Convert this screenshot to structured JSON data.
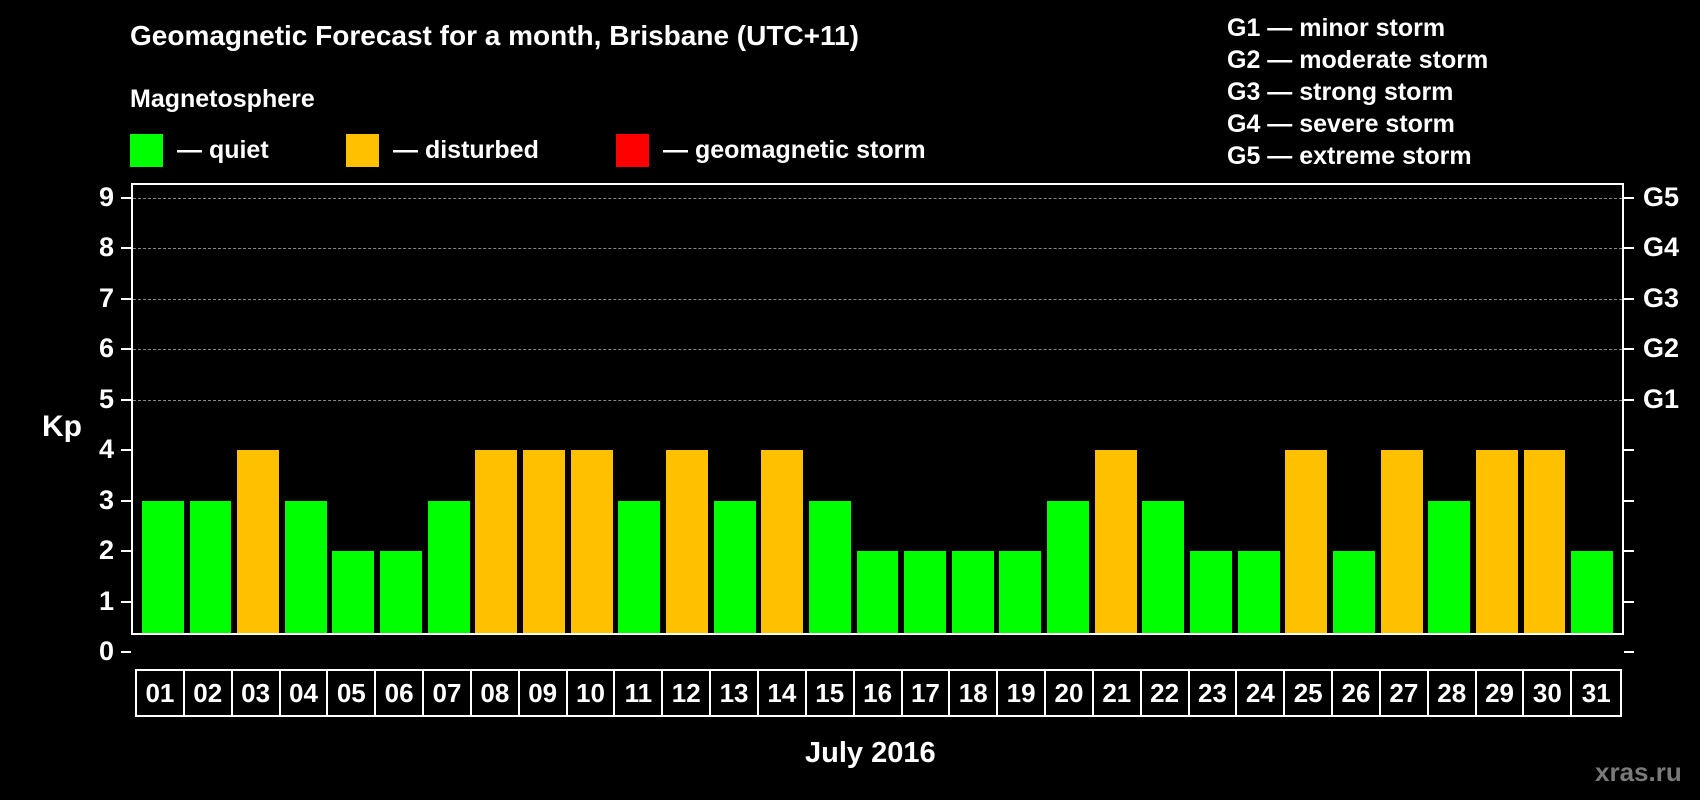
{
  "header": {
    "title": "Geomagnetic Forecast for a month, Brisbane (UTC+11)",
    "subtitle": "Magnetosphere"
  },
  "legend": [
    {
      "label": "— quiet",
      "color": "#00ff00"
    },
    {
      "label": "— disturbed",
      "color": "#ffc000"
    },
    {
      "label": "— geomagnetic storm",
      "color": "#ff0000"
    }
  ],
  "g_scale": [
    "G1 — minor storm",
    "G2 — moderate storm",
    "G3 — strong storm",
    "G4 — severe storm",
    "G5 — extreme storm"
  ],
  "axes": {
    "ylabel": "Kp",
    "xlabel": "July 2016",
    "yticks": [
      "0",
      "1",
      "2",
      "3",
      "4",
      "5",
      "6",
      "7",
      "8",
      "9"
    ],
    "right_labels": [
      {
        "kp": 5,
        "label": "G1"
      },
      {
        "kp": 6,
        "label": "G2"
      },
      {
        "kp": 7,
        "label": "G3"
      },
      {
        "kp": 8,
        "label": "G4"
      },
      {
        "kp": 9,
        "label": "G5"
      }
    ]
  },
  "watermark": "xras.ru",
  "colors": {
    "quiet": "#00ff00",
    "disturbed": "#ffc000",
    "storm": "#ff0000",
    "background": "#000000",
    "grid": "#888888"
  },
  "chart_data": {
    "type": "bar",
    "title": "Geomagnetic Forecast for a month, Brisbane (UTC+11)",
    "xlabel": "July 2016",
    "ylabel": "Kp",
    "ylim": [
      0,
      9
    ],
    "grid": true,
    "legend_position": "top",
    "categories": [
      "01",
      "02",
      "03",
      "04",
      "05",
      "06",
      "07",
      "08",
      "09",
      "10",
      "11",
      "12",
      "13",
      "14",
      "15",
      "16",
      "17",
      "18",
      "19",
      "20",
      "21",
      "22",
      "23",
      "24",
      "25",
      "26",
      "27",
      "28",
      "29",
      "30",
      "31"
    ],
    "values": [
      3,
      3,
      4,
      3,
      2,
      2,
      3,
      4,
      4,
      4,
      3,
      4,
      3,
      4,
      3,
      2,
      2,
      2,
      2,
      3,
      4,
      3,
      2,
      2,
      4,
      2,
      4,
      3,
      4,
      4,
      2
    ],
    "status": [
      "quiet",
      "quiet",
      "disturbed",
      "quiet",
      "quiet",
      "quiet",
      "quiet",
      "disturbed",
      "disturbed",
      "disturbed",
      "quiet",
      "disturbed",
      "quiet",
      "disturbed",
      "quiet",
      "quiet",
      "quiet",
      "quiet",
      "quiet",
      "quiet",
      "disturbed",
      "quiet",
      "quiet",
      "quiet",
      "disturbed",
      "quiet",
      "disturbed",
      "quiet",
      "disturbed",
      "disturbed",
      "quiet"
    ],
    "color_rule": "Kp<=3 quiet (green), Kp=4 disturbed (orange), Kp>=5 geomagnetic storm (red)",
    "right_axis_labels": {
      "5": "G1",
      "6": "G2",
      "7": "G3",
      "8": "G4",
      "9": "G5"
    }
  }
}
